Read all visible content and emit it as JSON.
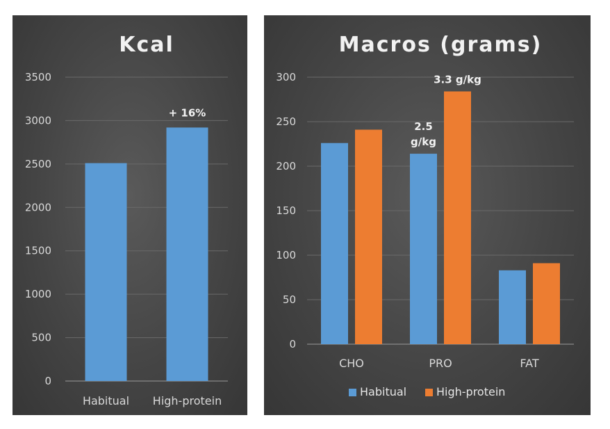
{
  "chart_data": [
    {
      "type": "bar",
      "title": "Kcal",
      "categories": [
        "Habitual",
        "High-protein"
      ],
      "values": [
        2510,
        2920
      ],
      "ylim": [
        0,
        3500
      ],
      "yticks": [
        0,
        500,
        1000,
        1500,
        2000,
        2500,
        3000,
        3500
      ],
      "grid": true,
      "colors": [
        "#5b9bd5"
      ],
      "annotations": [
        {
          "category": "High-protein",
          "text": "+ 16%"
        }
      ]
    },
    {
      "type": "bar",
      "title": "Macros (grams)",
      "categories": [
        "CHO",
        "PRO",
        "FAT"
      ],
      "series": [
        {
          "name": "Habitual",
          "values": [
            226,
            214,
            83
          ],
          "color": "#5b9bd5"
        },
        {
          "name": "High-protein",
          "values": [
            241,
            284,
            91
          ],
          "color": "#ed7d31"
        }
      ],
      "ylim": [
        0,
        300
      ],
      "yticks": [
        0,
        50,
        100,
        150,
        200,
        250,
        300
      ],
      "grid": true,
      "legend": "bottom",
      "annotations": [
        {
          "category": "PRO",
          "series": "Habitual",
          "lines": [
            "2.5",
            "g/kg"
          ]
        },
        {
          "category": "PRO",
          "series": "High-protein",
          "lines": [
            "3.3 g/kg"
          ]
        }
      ]
    }
  ]
}
